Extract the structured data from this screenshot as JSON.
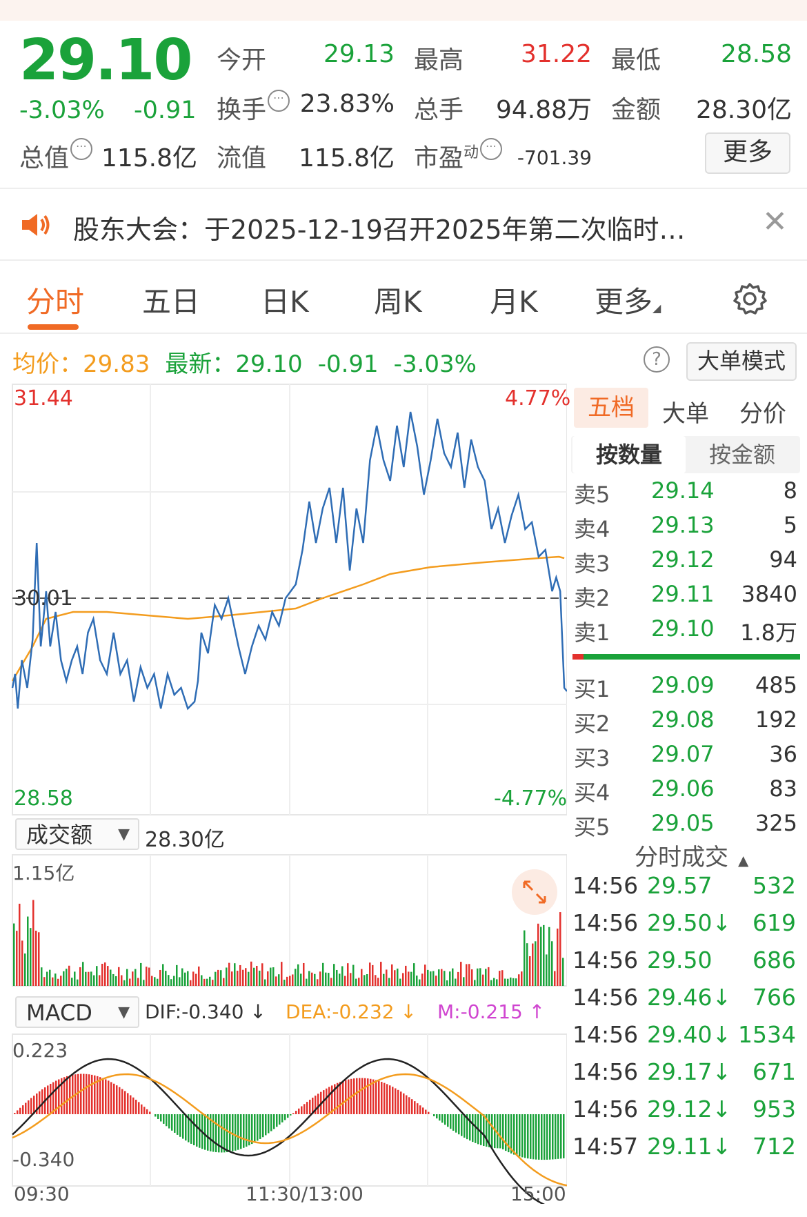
{
  "quote": {
    "price": "29.10",
    "change_pct": "-3.03%",
    "change": "-0.91",
    "fields": [
      {
        "label": "今开",
        "value": "29.13",
        "color": "green"
      },
      {
        "label": "最高",
        "value": "31.22",
        "color": "red"
      },
      {
        "label": "最低",
        "value": "28.58",
        "color": "green"
      },
      {
        "label": "换手",
        "value": "23.83%",
        "color": "dark"
      },
      {
        "label": "总手",
        "value": "94.88万",
        "color": "dark"
      },
      {
        "label": "金额",
        "value": "28.30亿",
        "color": "dark"
      },
      {
        "label": "总值",
        "value": "115.8亿",
        "color": "dark"
      },
      {
        "label": "流值",
        "value": "115.8亿",
        "color": "dark"
      },
      {
        "label": "市盈",
        "sup": "动",
        "value": "-701.39",
        "color": "dark"
      }
    ],
    "more_label": "更多"
  },
  "notice": {
    "text": "股东大会：于2025-12-19召开2025年第二次临时…"
  },
  "tabs": [
    "分时",
    "五日",
    "日K",
    "周K",
    "月K",
    "更多"
  ],
  "avg_bar": {
    "avg_label": "均价：",
    "avg_value": "29.83",
    "latest_label": "最新：",
    "latest_value": "29.10",
    "latest_change": "-0.91",
    "latest_pct": "-3.03%",
    "mode_label": "大单模式"
  },
  "price_chart": {
    "y_max": "31.44",
    "y_min": "28.58",
    "ref": "30.01",
    "pct_max": "4.77%",
    "pct_min": "-4.77%"
  },
  "volume": {
    "selector": "成交额",
    "total": "28.30亿",
    "y_max": "1.15亿"
  },
  "macd": {
    "selector": "MACD",
    "dif": "DIF:-0.340 ↓",
    "dea": "DEA:-0.232 ↓",
    "m": "M:-0.215 ↑",
    "y_max": "0.223",
    "y_min": "-0.340"
  },
  "time_axis": [
    "09:30",
    "11:30/13:00",
    "15:00"
  ],
  "orderbook": {
    "tabs": [
      "五档",
      "大单",
      "分价"
    ],
    "subtabs": [
      "按数量",
      "按金额"
    ],
    "asks": [
      {
        "label": "卖5",
        "price": "29.14",
        "vol": "8"
      },
      {
        "label": "卖4",
        "price": "29.13",
        "vol": "5"
      },
      {
        "label": "卖3",
        "price": "29.12",
        "vol": "94"
      },
      {
        "label": "卖2",
        "price": "29.11",
        "vol": "3840"
      },
      {
        "label": "卖1",
        "price": "29.10",
        "vol": "1.8万"
      }
    ],
    "bids": [
      {
        "label": "买1",
        "price": "29.09",
        "vol": "485"
      },
      {
        "label": "买2",
        "price": "29.08",
        "vol": "192"
      },
      {
        "label": "买3",
        "price": "29.07",
        "vol": "36"
      },
      {
        "label": "买4",
        "price": "29.06",
        "vol": "83"
      },
      {
        "label": "买5",
        "price": "29.05",
        "vol": "325"
      }
    ]
  },
  "ticks": {
    "title": "分时成交",
    "rows": [
      {
        "time": "14:56",
        "price": "29.57",
        "vol": "532"
      },
      {
        "time": "14:56",
        "price": "29.50↓",
        "vol": "619"
      },
      {
        "time": "14:56",
        "price": "29.50",
        "vol": "686"
      },
      {
        "time": "14:56",
        "price": "29.46↓",
        "vol": "766"
      },
      {
        "time": "14:56",
        "price": "29.40↓",
        "vol": "1534"
      },
      {
        "time": "14:56",
        "price": "29.17↓",
        "vol": "671"
      },
      {
        "time": "14:56",
        "price": "29.12↓",
        "vol": "953"
      },
      {
        "time": "14:57",
        "price": "29.11↓",
        "vol": "712"
      }
    ]
  },
  "colors": {
    "up": "#e3312d",
    "down": "#1aa23a",
    "accent": "#f06a25",
    "price_line": "#2f6db5",
    "avg_line": "#f39c1e"
  }
}
